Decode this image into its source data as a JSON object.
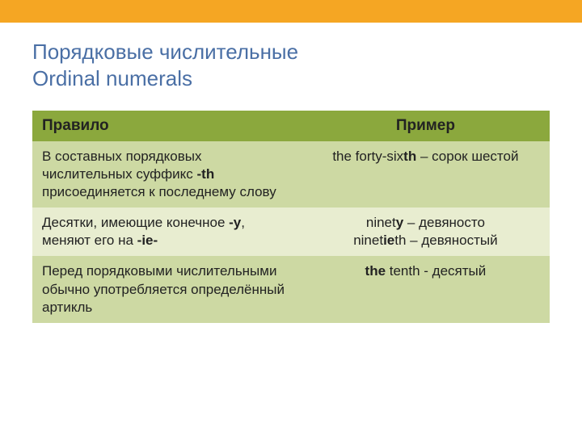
{
  "colors": {
    "topBar": "#f5a623",
    "titleText": "#4a6fa5",
    "headerBg": "#8ba83d",
    "headerText": "#ffffff",
    "rowBgA": "#cdd9a3",
    "rowBgB": "#e8edd0",
    "bodyText": "#222222",
    "pageBg": "#ffffff"
  },
  "typography": {
    "titleFontSize": 26,
    "headerFontSize": 19,
    "bodyFontSize": 17,
    "fontFamily": "Arial"
  },
  "title": {
    "line1": "Порядковые числительные",
    "line2": "Ordinal numerals"
  },
  "table": {
    "columns": [
      {
        "key": "rule",
        "label": "Правило",
        "width": "52%",
        "align": "left"
      },
      {
        "key": "example",
        "label": "Пример",
        "width": "48%",
        "align": "center"
      }
    ],
    "rows": [
      {
        "rule_pre": "В составных порядковых числительных суффикс ",
        "rule_bold": "-th",
        "rule_post": " присоединяется к последнему слову",
        "ex_pre": "the forty-six",
        "ex_bold": "th",
        "ex_post": " – сорок шестой",
        "ex2_pre": "",
        "ex2_bold": "",
        "ex2_post": ""
      },
      {
        "rule_pre": "Десятки, имеющие конечное ",
        "rule_bold": "-y",
        "rule_post": ", меняют его на ",
        "rule_bold2": "-ie-",
        "ex_pre": "ninet",
        "ex_bold": "y",
        "ex_post": " – девяносто",
        "ex2_pre": "ninet",
        "ex2_bold": "ie",
        "ex2_post": "th  –  девяностый"
      },
      {
        "rule_pre": "Перед порядковыми числительными обычно употребляется определённый артикль",
        "rule_bold": "",
        "rule_post": "",
        "ex_pre": "",
        "ex_bold": "the",
        "ex_post": " tenth - десятый",
        "ex2_pre": "",
        "ex2_bold": "",
        "ex2_post": ""
      }
    ]
  }
}
